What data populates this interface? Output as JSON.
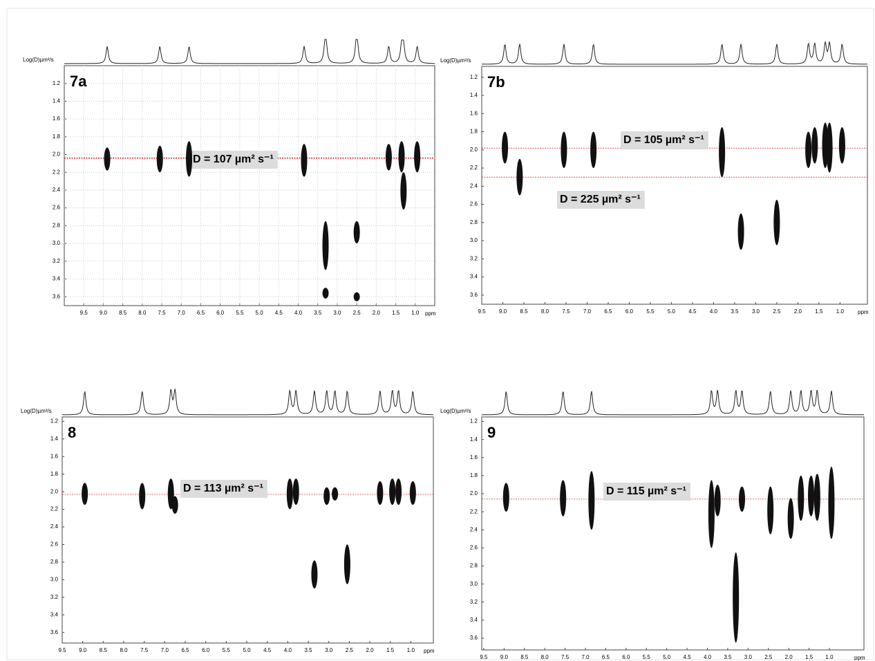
{
  "chart_data": [
    {
      "type": "dosy",
      "label": "7a",
      "y_label": "Log(D)µm²/s",
      "x_label": "ppm",
      "xlim": [
        10,
        0.5
      ],
      "ylim": [
        1.0,
        3.7
      ],
      "xticks": [
        9.5,
        {
          "value": 9,
          "label": "9.0"
        },
        8.5,
        {
          "value": 8,
          "label": "8.0"
        },
        7.5,
        {
          "value": 7,
          "label": "7.0"
        },
        6.5,
        {
          "value": 6,
          "label": "6.0"
        },
        5.5,
        {
          "value": 5,
          "label": "5.0"
        },
        4.5,
        {
          "value": 4,
          "label": "4.0"
        },
        3.5,
        {
          "value": 3,
          "label": "3.0"
        },
        2.5,
        {
          "value": 2,
          "label": "2.0"
        },
        1.5,
        {
          "value": 1,
          "label": "1.0"
        }
      ],
      "yticks": [
        1.2,
        1.4,
        1.6,
        1.8,
        {
          "value": 2,
          "label": "2.0"
        },
        2.2,
        2.4,
        2.6,
        2.8,
        {
          "value": 3,
          "label": "3.0"
        },
        3.2,
        3.4,
        3.6
      ],
      "grid": true,
      "ref_lines": [
        {
          "value": 2.04,
          "label": "D = 107 µm² s⁻¹"
        }
      ],
      "spots": {
        "x": [
          8.9,
          7.55,
          6.8,
          3.85,
          1.68,
          1.35,
          1.3,
          0.95,
          3.3,
          2.5,
          3.3,
          2.5
        ],
        "y_low": [
          1.92,
          1.9,
          1.85,
          1.88,
          1.88,
          1.85,
          2.2,
          1.85,
          2.75,
          2.75,
          3.5,
          3.55
        ],
        "y_high": [
          2.18,
          2.2,
          2.25,
          2.25,
          2.18,
          2.2,
          2.62,
          2.2,
          3.3,
          3.0,
          3.62,
          3.65
        ]
      }
    },
    {
      "type": "dosy",
      "label": "7b",
      "y_label": "Log(D)µm²/s",
      "x_label": "ppm",
      "xlim": [
        9.5,
        0.35
      ],
      "ylim": [
        1.08,
        3.7
      ],
      "xticks": [
        9.5,
        {
          "value": 9,
          "label": "9.0"
        },
        8.5,
        {
          "value": 8,
          "label": "8.0"
        },
        7.5,
        {
          "value": 7,
          "label": "7.0"
        },
        6.5,
        {
          "value": 6,
          "label": "6.0"
        },
        5.5,
        {
          "value": 5,
          "label": "5.0"
        },
        4.5,
        {
          "value": 4,
          "label": "4.0"
        },
        3.5,
        {
          "value": 3,
          "label": "3.0"
        },
        2.5,
        {
          "value": 2,
          "label": "2.0"
        },
        1.5,
        {
          "value": 1,
          "label": "1.0"
        }
      ],
      "yticks": [
        1.2,
        1.4,
        1.6,
        1.8,
        {
          "value": 2,
          "label": "2.0"
        },
        2.2,
        2.4,
        2.6,
        2.8,
        {
          "value": 3,
          "label": "3.0"
        },
        3.2,
        3.4,
        3.6
      ],
      "grid": false,
      "ref_lines": [
        {
          "value": 1.98,
          "label": "D = 105 µm² s⁻¹"
        },
        {
          "value": 2.3,
          "label": "D = 225 µm² s⁻¹"
        }
      ],
      "spots": {
        "x": [
          8.95,
          8.6,
          7.55,
          6.85,
          3.8,
          3.35,
          2.5,
          1.75,
          1.6,
          1.35,
          1.25,
          0.95
        ],
        "y_low": [
          1.8,
          2.1,
          1.8,
          1.8,
          1.75,
          2.7,
          2.55,
          1.8,
          1.75,
          1.7,
          1.7,
          1.75
        ],
        "y_high": [
          2.15,
          2.5,
          2.2,
          2.2,
          2.3,
          3.1,
          3.05,
          2.2,
          2.15,
          2.2,
          2.25,
          2.15
        ]
      }
    },
    {
      "type": "dosy",
      "label": "8",
      "y_label": "Log(D)µm²/s",
      "x_label": "ppm",
      "xlim": [
        9.5,
        0.45
      ],
      "ylim": [
        1.15,
        3.72
      ],
      "xticks": [
        9.5,
        {
          "value": 9,
          "label": "9.0"
        },
        8.5,
        {
          "value": 8,
          "label": "8.0"
        },
        7.5,
        {
          "value": 7,
          "label": "7.0"
        },
        6.5,
        {
          "value": 6,
          "label": "6.0"
        },
        5.5,
        {
          "value": 5,
          "label": "5.0"
        },
        4.5,
        {
          "value": 4,
          "label": "4.0"
        },
        3.5,
        {
          "value": 3,
          "label": "3.0"
        },
        2.5,
        {
          "value": 2,
          "label": "2.0"
        },
        1.5,
        {
          "value": 1,
          "label": "1.0"
        }
      ],
      "yticks": [
        1.2,
        1.4,
        1.6,
        1.8,
        {
          "value": 2,
          "label": "2.0"
        },
        2.2,
        2.4,
        2.6,
        2.8,
        {
          "value": 3,
          "label": "3.0"
        },
        3.2,
        3.4,
        3.6
      ],
      "grid": false,
      "ref_lines": [
        {
          "value": 2.03,
          "label": "D = 113 µm² s⁻¹"
        }
      ],
      "spots": {
        "x": [
          8.95,
          7.55,
          6.85,
          6.75,
          3.95,
          3.8,
          3.35,
          3.05,
          2.85,
          2.55,
          1.75,
          1.45,
          1.3,
          0.95
        ],
        "y_low": [
          1.9,
          1.9,
          1.85,
          2.05,
          1.85,
          1.85,
          2.78,
          1.95,
          1.95,
          2.6,
          1.88,
          1.85,
          1.85,
          1.88
        ],
        "y_high": [
          2.15,
          2.2,
          2.2,
          2.25,
          2.2,
          2.15,
          3.1,
          2.15,
          2.1,
          3.05,
          2.15,
          2.15,
          2.15,
          2.15
        ]
      }
    },
    {
      "type": "dosy",
      "label": "9",
      "y_label": "Log(D)µm²/s",
      "x_label": "ppm",
      "xlim": [
        9.55,
        0.15
      ],
      "ylim": [
        1.15,
        3.73
      ],
      "xticks": [
        9.5,
        {
          "value": 9,
          "label": "9.0"
        },
        8.5,
        {
          "value": 8,
          "label": "8.0"
        },
        7.5,
        {
          "value": 7,
          "label": "7.0"
        },
        6.5,
        {
          "value": 6,
          "label": "6.0"
        },
        5.5,
        {
          "value": 5,
          "label": "5.0"
        },
        4.5,
        {
          "value": 4,
          "label": "4.0"
        },
        3.5,
        {
          "value": 3,
          "label": "3.0"
        },
        2.5,
        {
          "value": 2,
          "label": "2.0"
        },
        1.5,
        {
          "value": 1,
          "label": "1.0"
        }
      ],
      "yticks": [
        1.2,
        1.4,
        1.6,
        1.8,
        {
          "value": 2,
          "label": "2.0"
        },
        2.2,
        2.4,
        2.6,
        2.8,
        {
          "value": 3,
          "label": "3.0"
        },
        3.2,
        3.4,
        3.6
      ],
      "grid": false,
      "ref_lines": [
        {
          "value": 2.06,
          "label": "D = 115 µm² s⁻¹"
        }
      ],
      "spots": {
        "x": [
          8.95,
          7.55,
          6.85,
          3.9,
          3.75,
          3.3,
          3.15,
          2.45,
          1.95,
          1.7,
          1.45,
          1.3,
          0.95
        ],
        "y_low": [
          1.88,
          1.85,
          1.75,
          1.85,
          1.9,
          2.65,
          1.92,
          1.92,
          2.05,
          1.8,
          1.8,
          1.78,
          1.7
        ],
        "y_high": [
          2.2,
          2.25,
          2.4,
          2.6,
          2.25,
          3.65,
          2.2,
          2.45,
          2.5,
          2.3,
          2.25,
          2.3,
          2.5
        ]
      }
    }
  ]
}
